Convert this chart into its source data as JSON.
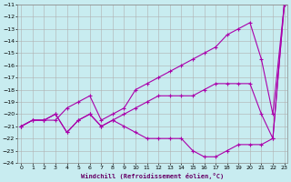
{
  "xlabel": "Windchill (Refroidissement éolien,°C)",
  "background_color": "#c8ecf0",
  "grid_color": "#b0b0b0",
  "line_color": "#aa00aa",
  "x": [
    0,
    1,
    2,
    3,
    4,
    5,
    6,
    7,
    8,
    9,
    10,
    11,
    12,
    13,
    14,
    15,
    16,
    17,
    18,
    19,
    20,
    21,
    22,
    23
  ],
  "line1": [
    -21,
    -20.5,
    -20.5,
    -20.5,
    -19.5,
    -19.0,
    -18.5,
    -20.5,
    -20.0,
    -19.5,
    -18.0,
    -17.5,
    -17.0,
    -16.5,
    -16.0,
    -15.5,
    -15.0,
    -14.5,
    -13.5,
    -13.0,
    -12.5,
    -15.5,
    -20.0,
    -11.0
  ],
  "line2": [
    -21,
    -20.5,
    -20.5,
    -20.0,
    -21.5,
    -20.5,
    -20.0,
    -21.0,
    -20.5,
    -20.0,
    -19.5,
    -19.0,
    -18.5,
    -18.5,
    -18.5,
    -18.5,
    -18.0,
    -17.5,
    -17.5,
    -17.5,
    -17.5,
    -20.0,
    -22.0,
    -11.0
  ],
  "line3": [
    -21,
    -20.5,
    -20.5,
    -20.0,
    -21.5,
    -20.5,
    -20.0,
    -21.0,
    -20.5,
    -21.0,
    -21.5,
    -22.0,
    -22.0,
    -22.0,
    -22.0,
    -23.0,
    -23.5,
    -23.5,
    -23.0,
    -22.5,
    -22.5,
    -22.5,
    -22.0,
    -11.0
  ],
  "ylim": [
    -24,
    -11
  ],
  "xlim": [
    -0.3,
    23.3
  ],
  "yticks": [
    -24,
    -23,
    -22,
    -21,
    -20,
    -19,
    -18,
    -17,
    -16,
    -15,
    -14,
    -13,
    -12,
    -11
  ],
  "xticks": [
    0,
    1,
    2,
    3,
    4,
    5,
    6,
    7,
    8,
    9,
    10,
    11,
    12,
    13,
    14,
    15,
    16,
    17,
    18,
    19,
    20,
    21,
    22,
    23
  ]
}
